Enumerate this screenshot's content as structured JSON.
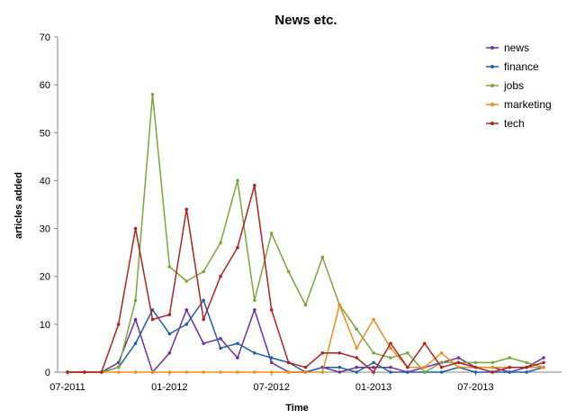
{
  "chart_data": {
    "type": "line",
    "title": "News etc.",
    "xlabel": "Time",
    "ylabel": "articles added",
    "ylim": [
      0,
      70
    ],
    "yticks": [
      "0",
      "10",
      "20",
      "30",
      "40",
      "50",
      "60",
      "70"
    ],
    "xtick_labels": [
      {
        "label": "07-2011",
        "month": "2011-07"
      },
      {
        "label": "01-2012",
        "month": "2012-01"
      },
      {
        "label": "07-2012",
        "month": "2012-07"
      },
      {
        "label": "01-2013",
        "month": "2013-01"
      },
      {
        "label": "07-2013",
        "month": "2013-07"
      }
    ],
    "x": [
      "2011-07",
      "2011-08",
      "2011-09",
      "2011-10",
      "2011-11",
      "2011-12",
      "2012-01",
      "2012-02",
      "2012-03",
      "2012-04",
      "2012-05",
      "2012-06",
      "2012-07",
      "2012-08",
      "2012-09",
      "2012-10",
      "2012-11",
      "2012-12",
      "2013-01",
      "2013-02",
      "2013-03",
      "2013-04",
      "2013-05",
      "2013-06",
      "2013-07",
      "2013-08",
      "2013-09",
      "2013-10",
      "2013-11"
    ],
    "grid": false,
    "legend_position": "top-right",
    "series": [
      {
        "name": "news",
        "color": "#7030a0",
        "values": [
          0,
          0,
          0,
          2,
          11,
          0,
          4,
          13,
          6,
          7,
          3,
          13,
          2,
          0,
          0,
          1,
          0,
          1,
          1,
          1,
          0,
          1,
          2,
          3,
          1,
          1,
          0,
          1,
          3
        ]
      },
      {
        "name": "finance",
        "color": "#1f5fa8",
        "values": [
          0,
          0,
          0,
          1,
          6,
          13,
          8,
          10,
          15,
          5,
          6,
          4,
          3,
          2,
          0,
          1,
          1,
          0,
          2,
          0,
          0,
          0,
          0,
          1,
          0,
          0,
          0,
          0,
          1
        ]
      },
      {
        "name": "jobs",
        "color": "#77a83b",
        "values": [
          0,
          0,
          0,
          1,
          15,
          58,
          22,
          19,
          21,
          27,
          40,
          15,
          29,
          21,
          14,
          24,
          14,
          9,
          4,
          3,
          4,
          0,
          2,
          2,
          2,
          2,
          3,
          2,
          1
        ]
      },
      {
        "name": "marketing",
        "color": "#f28c1e",
        "values": [
          0,
          0,
          0,
          0,
          0,
          0,
          0,
          0,
          0,
          0,
          0,
          0,
          0,
          0,
          0,
          0,
          14,
          5,
          11,
          5,
          1,
          1,
          4,
          1,
          1,
          1,
          1,
          1,
          1
        ]
      },
      {
        "name": "tech",
        "color": "#b22222",
        "values": [
          0,
          0,
          0,
          10,
          30,
          11,
          12,
          34,
          11,
          20,
          26,
          39,
          13,
          2,
          1,
          4,
          4,
          3,
          0,
          6,
          1,
          6,
          1,
          2,
          1,
          0,
          1,
          1,
          2
        ]
      }
    ]
  }
}
